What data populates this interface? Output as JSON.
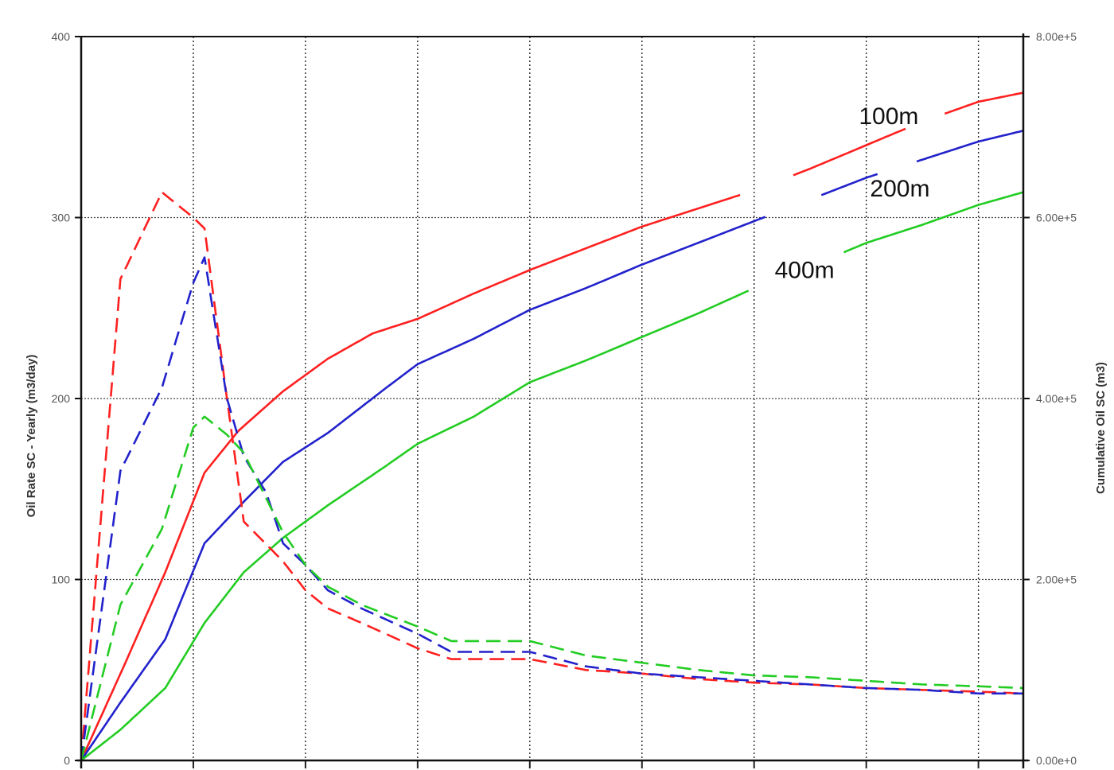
{
  "chart_data": {
    "type": "line",
    "title": "",
    "ylabel": "Oil Rate SC - Yearly (m3/day)",
    "y2label": "Cumulative Oil SC (m3)",
    "xlim": [
      0,
      8.4
    ],
    "ylim": [
      0,
      400
    ],
    "y2lim": [
      0,
      800000
    ],
    "yticks": [
      "0",
      "100",
      "200",
      "300",
      "400"
    ],
    "y2ticks": [
      "0.00e+0",
      "2.00e+5",
      "4.00e+5",
      "6.00e+5",
      "8.00e+5"
    ],
    "x_gridlines": [
      1,
      2,
      3,
      4,
      5,
      6,
      7,
      8
    ],
    "y_gridlines": [
      100,
      200,
      300,
      400
    ],
    "grid": true,
    "series": [
      {
        "name": "100m",
        "color": "#ff2020",
        "style": "solid",
        "axis": "right",
        "label_at": [
          7.2,
          712000
        ],
        "gaps": [
          [
            5.88,
            6.35
          ],
          [
            7.36,
            7.7
          ]
        ],
        "x": [
          0,
          0.38,
          0.75,
          1.1,
          1.4,
          1.8,
          2.2,
          2.6,
          3.0,
          3.5,
          4.0,
          4.5,
          5.0,
          5.5,
          6.0,
          6.5,
          7.0,
          7.5,
          8.0,
          8.4
        ],
        "y": [
          0,
          104000,
          208000,
          318000,
          364000,
          408000,
          444000,
          472000,
          488000,
          516000,
          542000,
          566000,
          590000,
          610000,
          630000,
          654000,
          680000,
          706000,
          728000,
          738000
        ]
      },
      {
        "name": "200m",
        "color": "#2222cc",
        "style": "solid",
        "axis": "right",
        "label_at": [
          7.3,
          632000
        ],
        "gaps": [
          [
            6.1,
            6.6
          ],
          [
            7.1,
            7.45
          ]
        ],
        "x": [
          0,
          0.35,
          0.75,
          1.1,
          1.45,
          1.8,
          2.2,
          2.7,
          3.0,
          3.5,
          4.0,
          4.5,
          5.0,
          5.5,
          6.0,
          6.5,
          7.0,
          7.5,
          8.0,
          8.4
        ],
        "y": [
          0,
          64000,
          134000,
          240000,
          286000,
          330000,
          362000,
          410000,
          438000,
          466000,
          498000,
          522000,
          548000,
          572000,
          596000,
          620000,
          644000,
          664000,
          684000,
          696000
        ]
      },
      {
        "name": "400m",
        "color": "#22cc22",
        "style": "solid",
        "axis": "right",
        "label_at": [
          6.45,
          542000
        ],
        "gaps": [
          [
            5.95,
            6.8
          ]
        ],
        "x": [
          0,
          0.35,
          0.75,
          1.1,
          1.45,
          1.8,
          2.2,
          2.7,
          3.0,
          3.5,
          4.0,
          4.5,
          5.0,
          5.5,
          6.0,
          6.5,
          7.0,
          7.5,
          8.0,
          8.4
        ],
        "y": [
          0,
          34000,
          80000,
          152000,
          208000,
          246000,
          282000,
          324000,
          350000,
          380000,
          418000,
          442000,
          468000,
          494000,
          522000,
          546000,
          572000,
          592000,
          614000,
          628000
        ]
      },
      {
        "name": "",
        "color": "#ff2020",
        "style": "dashed",
        "axis": "left",
        "x": [
          0,
          0.35,
          0.72,
          1.0,
          1.1,
          1.3,
          1.45,
          1.8,
          2.0,
          2.2,
          2.5,
          3.0,
          3.3,
          4.0,
          4.5,
          5.0,
          5.5,
          6.0,
          6.5,
          7.0,
          7.5,
          8.0,
          8.4
        ],
        "y": [
          0,
          266,
          314,
          300,
          294,
          200,
          132,
          110,
          94,
          84,
          76,
          62,
          56,
          56,
          50,
          48,
          45,
          43,
          42,
          40,
          39,
          38,
          37
        ]
      },
      {
        "name": "",
        "color": "#2222cc",
        "style": "dashed",
        "axis": "left",
        "x": [
          0,
          0.35,
          0.72,
          1.0,
          1.1,
          1.3,
          1.45,
          1.65,
          1.8,
          2.0,
          2.2,
          2.5,
          3.0,
          3.3,
          4.0,
          4.5,
          5.0,
          5.5,
          6.0,
          6.5,
          7.0,
          7.5,
          8.0,
          8.4
        ],
        "y": [
          0,
          160,
          206,
          264,
          278,
          200,
          168,
          148,
          120,
          108,
          94,
          84,
          70,
          60,
          60,
          52,
          48,
          46,
          44,
          42,
          40,
          39,
          37,
          37
        ]
      },
      {
        "name": "",
        "color": "#22cc22",
        "style": "dashed",
        "axis": "left",
        "x": [
          0,
          0.35,
          0.72,
          1.0,
          1.1,
          1.3,
          1.45,
          1.8,
          2.0,
          2.2,
          2.5,
          3.0,
          3.3,
          4.0,
          4.5,
          5.0,
          5.5,
          6.0,
          6.5,
          7.0,
          7.5,
          8.0,
          8.4
        ],
        "y": [
          0,
          86,
          128,
          184,
          190,
          180,
          170,
          126,
          108,
          96,
          86,
          74,
          66,
          66,
          58,
          54,
          50,
          47,
          46,
          44,
          42,
          41,
          40
        ]
      }
    ]
  }
}
